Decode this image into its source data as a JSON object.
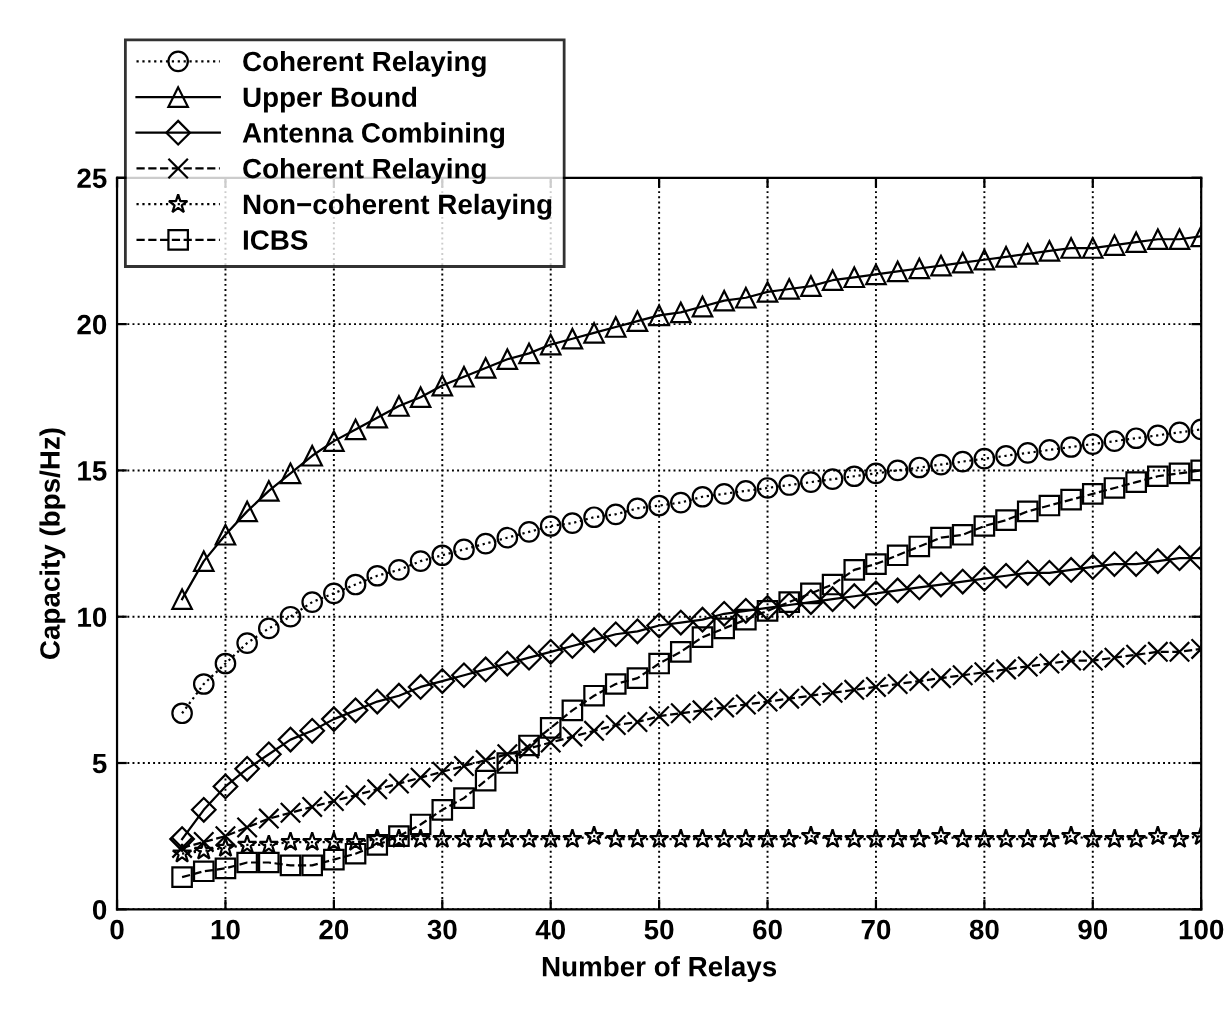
{
  "chart_data": {
    "type": "line",
    "xlabel": "Number of Relays",
    "ylabel": "Capacity (bps/Hz)",
    "x": [
      6,
      8,
      10,
      12,
      14,
      16,
      18,
      20,
      22,
      24,
      26,
      28,
      30,
      32,
      34,
      36,
      38,
      40,
      42,
      44,
      46,
      48,
      50,
      52,
      54,
      56,
      58,
      60,
      62,
      64,
      66,
      68,
      70,
      72,
      74,
      76,
      78,
      80,
      82,
      84,
      86,
      88,
      90,
      92,
      94,
      96,
      98,
      100
    ],
    "xlim": [
      0,
      100
    ],
    "xticks": [
      0,
      10,
      20,
      30,
      40,
      50,
      60,
      70,
      80,
      90,
      100
    ],
    "ylim": [
      0,
      25
    ],
    "yticks": [
      0,
      5,
      10,
      15,
      20,
      25
    ],
    "grid": true,
    "legend": "top left",
    "series": [
      {
        "name": "Coherent Relaying",
        "color": "#000000",
        "marker": "circle",
        "line_style": "dotted",
        "values": [
          6.7,
          7.7,
          8.4,
          9.1,
          9.6,
          10.0,
          10.5,
          10.8,
          11.1,
          11.4,
          11.6,
          11.9,
          12.1,
          12.3,
          12.5,
          12.7,
          12.9,
          13.1,
          13.2,
          13.4,
          13.5,
          13.7,
          13.8,
          13.9,
          14.1,
          14.2,
          14.3,
          14.4,
          14.5,
          14.6,
          14.7,
          14.8,
          14.9,
          15.0,
          15.1,
          15.2,
          15.3,
          15.4,
          15.5,
          15.6,
          15.7,
          15.8,
          15.9,
          16.0,
          16.1,
          16.2,
          16.3,
          16.4
        ]
      },
      {
        "name": "Upper Bound",
        "color": "#000000",
        "marker": "triangle",
        "line_style": "solid",
        "values": [
          10.6,
          11.9,
          12.8,
          13.6,
          14.3,
          14.9,
          15.5,
          16.0,
          16.4,
          16.8,
          17.2,
          17.5,
          17.9,
          18.2,
          18.5,
          18.8,
          19.0,
          19.3,
          19.5,
          19.7,
          19.9,
          20.1,
          20.3,
          20.4,
          20.6,
          20.8,
          20.9,
          21.1,
          21.2,
          21.3,
          21.5,
          21.6,
          21.7,
          21.8,
          21.9,
          22.0,
          22.1,
          22.2,
          22.3,
          22.4,
          22.5,
          22.6,
          22.6,
          22.7,
          22.8,
          22.9,
          22.9,
          23.0
        ]
      },
      {
        "name": "Antenna Combining",
        "color": "#000000",
        "marker": "diamond",
        "line_style": "solid",
        "values": [
          2.4,
          3.4,
          4.2,
          4.8,
          5.3,
          5.8,
          6.1,
          6.5,
          6.8,
          7.1,
          7.3,
          7.6,
          7.8,
          8.0,
          8.2,
          8.4,
          8.6,
          8.8,
          9.0,
          9.2,
          9.4,
          9.5,
          9.7,
          9.8,
          9.9,
          10.1,
          10.2,
          10.3,
          10.4,
          10.5,
          10.6,
          10.7,
          10.8,
          10.9,
          11.0,
          11.1,
          11.2,
          11.3,
          11.4,
          11.5,
          11.5,
          11.6,
          11.7,
          11.8,
          11.8,
          11.9,
          12.0,
          12.0
        ]
      },
      {
        "name": "Coherent Relaying",
        "color": "#000000",
        "marker": "cross",
        "line_style": "dashed",
        "values": [
          2.1,
          2.3,
          2.5,
          2.8,
          3.1,
          3.3,
          3.5,
          3.7,
          3.9,
          4.1,
          4.3,
          4.5,
          4.7,
          4.9,
          5.1,
          5.3,
          5.5,
          5.7,
          5.9,
          6.1,
          6.3,
          6.4,
          6.6,
          6.7,
          6.8,
          6.9,
          7.0,
          7.1,
          7.2,
          7.3,
          7.4,
          7.5,
          7.6,
          7.7,
          7.8,
          7.9,
          8.0,
          8.1,
          8.2,
          8.3,
          8.4,
          8.5,
          8.5,
          8.6,
          8.7,
          8.8,
          8.8,
          8.9
        ]
      },
      {
        "name": "Non−coherent Relaying",
        "color": "#000000",
        "marker": "star",
        "line_style": "dotted",
        "values": [
          1.9,
          2.0,
          2.1,
          2.2,
          2.2,
          2.3,
          2.3,
          2.3,
          2.3,
          2.4,
          2.4,
          2.4,
          2.4,
          2.4,
          2.4,
          2.4,
          2.4,
          2.4,
          2.4,
          2.5,
          2.4,
          2.4,
          2.4,
          2.4,
          2.4,
          2.4,
          2.4,
          2.4,
          2.4,
          2.5,
          2.4,
          2.4,
          2.4,
          2.4,
          2.4,
          2.5,
          2.4,
          2.4,
          2.4,
          2.4,
          2.4,
          2.5,
          2.4,
          2.4,
          2.4,
          2.5,
          2.4,
          2.5
        ]
      },
      {
        "name": "ICBS",
        "color": "#000000",
        "marker": "square",
        "line_style": "dashed",
        "values": [
          1.1,
          1.3,
          1.4,
          1.6,
          1.6,
          1.5,
          1.5,
          1.7,
          1.9,
          2.2,
          2.5,
          2.9,
          3.4,
          3.8,
          4.4,
          5.0,
          5.6,
          6.2,
          6.8,
          7.3,
          7.7,
          7.9,
          8.4,
          8.8,
          9.3,
          9.6,
          9.9,
          10.2,
          10.5,
          10.8,
          11.1,
          11.6,
          11.8,
          12.1,
          12.4,
          12.7,
          12.8,
          13.1,
          13.3,
          13.6,
          13.8,
          14.0,
          14.2,
          14.4,
          14.6,
          14.8,
          14.9,
          15.0
        ]
      }
    ]
  }
}
